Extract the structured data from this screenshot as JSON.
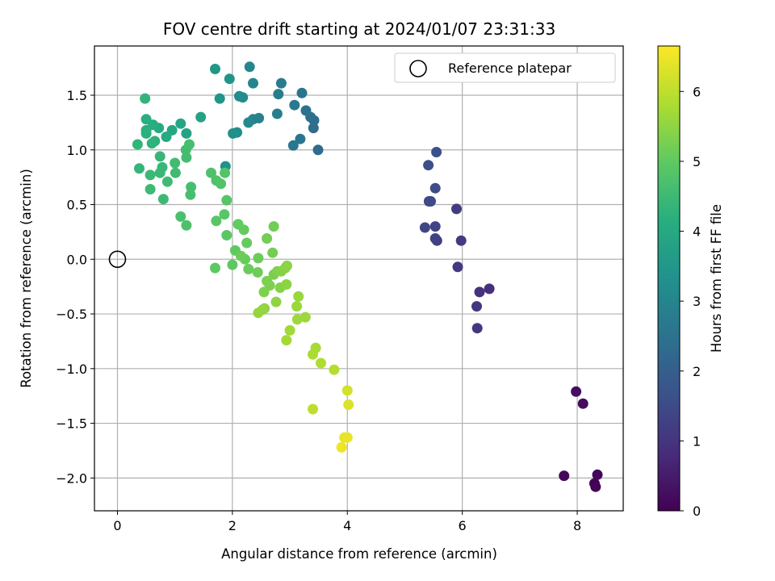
{
  "chart_data": {
    "type": "scatter",
    "title": "FOV centre drift starting at 2024/01/07 23:31:33",
    "xlabel": "Angular distance from reference (arcmin)",
    "ylabel": "Rotation from reference (arcmin)",
    "xlim": [
      -0.4,
      8.8
    ],
    "ylim": [
      -2.3,
      1.95
    ],
    "x_ticks": [
      0,
      2,
      4,
      6,
      8
    ],
    "x_tick_labels": [
      "0",
      "2",
      "4",
      "6",
      "8"
    ],
    "y_ticks": [
      -2.0,
      -1.5,
      -1.0,
      -0.5,
      0.0,
      0.5,
      1.0,
      1.5
    ],
    "y_tick_labels": [
      "−2.0",
      "−1.5",
      "−1.0",
      "−0.5",
      "0.0",
      "0.5",
      "1.0",
      "1.5"
    ],
    "grid": true,
    "legend": {
      "position": "upper right",
      "entries": [
        "Reference platepar"
      ]
    },
    "reference_point": {
      "x": 0.0,
      "y": 0.0,
      "marker": "open-circle"
    },
    "colorbar": {
      "label": "Hours from first FF file",
      "colormap": "viridis",
      "range": [
        0,
        6.65
      ],
      "ticks": [
        0,
        1,
        2,
        3,
        4,
        5,
        6
      ],
      "tick_labels": [
        "0",
        "1",
        "2",
        "3",
        "4",
        "5",
        "6"
      ]
    },
    "points": [
      [
        8.3,
        -2.05,
        0.0
      ],
      [
        8.32,
        -2.08,
        0.06
      ],
      [
        8.35,
        -1.97,
        0.1
      ],
      [
        7.77,
        -1.98,
        0.15
      ],
      [
        8.1,
        -1.32,
        0.2
      ],
      [
        7.98,
        -1.21,
        0.25
      ],
      [
        6.47,
        -0.27,
        0.9
      ],
      [
        6.3,
        -0.3,
        0.95
      ],
      [
        6.25,
        -0.43,
        1.0
      ],
      [
        6.26,
        -0.63,
        1.05
      ],
      [
        5.92,
        -0.07,
        1.1
      ],
      [
        5.98,
        0.17,
        1.15
      ],
      [
        5.9,
        0.46,
        1.2
      ],
      [
        5.56,
        0.17,
        1.25
      ],
      [
        5.53,
        0.19,
        1.3
      ],
      [
        5.53,
        0.3,
        1.35
      ],
      [
        5.35,
        0.29,
        1.4
      ],
      [
        5.42,
        0.53,
        1.45
      ],
      [
        5.45,
        0.53,
        1.5
      ],
      [
        5.53,
        0.65,
        1.55
      ],
      [
        5.41,
        0.86,
        1.6
      ],
      [
        5.55,
        0.98,
        1.65
      ],
      [
        3.49,
        1.0,
        2.3
      ],
      [
        3.41,
        1.2,
        2.35
      ],
      [
        3.42,
        1.27,
        2.4
      ],
      [
        3.36,
        1.3,
        2.45
      ],
      [
        3.28,
        1.36,
        2.5
      ],
      [
        3.21,
        1.52,
        2.55
      ],
      [
        3.18,
        1.1,
        2.6
      ],
      [
        3.06,
        1.04,
        2.65
      ],
      [
        3.08,
        1.41,
        2.7
      ],
      [
        2.85,
        1.61,
        2.75
      ],
      [
        2.8,
        1.51,
        2.8
      ],
      [
        2.78,
        1.33,
        2.85
      ],
      [
        2.46,
        1.29,
        2.9
      ],
      [
        2.36,
        1.28,
        2.95
      ],
      [
        2.36,
        1.61,
        3.0
      ],
      [
        2.3,
        1.76,
        3.05
      ],
      [
        2.28,
        1.25,
        3.1
      ],
      [
        2.18,
        1.48,
        3.15
      ],
      [
        2.12,
        1.49,
        3.2
      ],
      [
        2.08,
        1.16,
        3.25
      ],
      [
        2.01,
        1.15,
        3.3
      ],
      [
        1.88,
        0.85,
        3.35
      ],
      [
        1.95,
        1.65,
        3.4
      ],
      [
        1.78,
        1.47,
        3.45
      ],
      [
        1.7,
        1.74,
        3.5
      ],
      [
        1.45,
        1.3,
        3.8
      ],
      [
        1.2,
        1.15,
        3.85
      ],
      [
        1.1,
        1.24,
        3.9
      ],
      [
        0.95,
        1.18,
        3.95
      ],
      [
        0.85,
        1.12,
        4.0
      ],
      [
        0.72,
        1.2,
        4.05
      ],
      [
        0.62,
        1.23,
        4.1
      ],
      [
        0.5,
        1.28,
        4.15
      ],
      [
        0.5,
        1.18,
        4.2
      ],
      [
        0.5,
        1.15,
        4.22
      ],
      [
        0.65,
        1.08,
        4.25
      ],
      [
        0.6,
        1.06,
        4.28
      ],
      [
        0.48,
        1.47,
        4.3
      ],
      [
        0.35,
        1.05,
        4.33
      ],
      [
        0.38,
        0.83,
        4.36
      ],
      [
        0.74,
        0.94,
        4.4
      ],
      [
        0.78,
        0.84,
        4.42
      ],
      [
        0.74,
        0.79,
        4.44
      ],
      [
        0.57,
        0.77,
        4.46
      ],
      [
        0.57,
        0.64,
        4.48
      ],
      [
        0.8,
        0.55,
        4.5
      ],
      [
        0.87,
        0.71,
        4.52
      ],
      [
        1.01,
        0.79,
        4.54
      ],
      [
        1.0,
        0.88,
        4.56
      ],
      [
        1.2,
        0.93,
        4.58
      ],
      [
        1.19,
        1.0,
        4.6
      ],
      [
        1.25,
        1.05,
        4.62
      ],
      [
        1.28,
        0.66,
        4.64
      ],
      [
        1.27,
        0.59,
        4.66
      ],
      [
        1.1,
        0.39,
        4.7
      ],
      [
        1.2,
        0.31,
        4.72
      ],
      [
        1.63,
        0.79,
        4.75
      ],
      [
        1.72,
        0.72,
        4.78
      ],
      [
        1.8,
        0.69,
        4.8
      ],
      [
        1.87,
        0.79,
        4.82
      ],
      [
        1.9,
        0.54,
        4.85
      ],
      [
        1.86,
        0.41,
        4.88
      ],
      [
        1.72,
        0.35,
        4.9
      ],
      [
        1.9,
        0.22,
        4.92
      ],
      [
        1.7,
        -0.08,
        4.95
      ],
      [
        2.0,
        -0.05,
        4.97
      ],
      [
        2.05,
        0.08,
        5.0
      ],
      [
        2.1,
        0.32,
        5.02
      ],
      [
        2.2,
        0.27,
        5.04
      ],
      [
        2.25,
        0.15,
        5.06
      ],
      [
        2.22,
        0.0,
        5.08
      ],
      [
        2.28,
        -0.09,
        5.1
      ],
      [
        2.15,
        0.03,
        5.12
      ],
      [
        2.45,
        0.01,
        5.14
      ],
      [
        2.44,
        -0.12,
        5.16
      ],
      [
        2.72,
        0.3,
        5.18
      ],
      [
        2.6,
        0.19,
        5.2
      ],
      [
        2.7,
        0.06,
        5.22
      ],
      [
        2.72,
        -0.14,
        5.25
      ],
      [
        2.6,
        -0.2,
        5.28
      ],
      [
        2.65,
        -0.24,
        5.3
      ],
      [
        2.55,
        -0.3,
        5.32
      ],
      [
        2.78,
        -0.11,
        5.35
      ],
      [
        2.83,
        -0.26,
        5.38
      ],
      [
        2.85,
        -0.11,
        5.4
      ],
      [
        2.92,
        -0.08,
        5.42
      ],
      [
        2.95,
        -0.06,
        5.45
      ],
      [
        2.94,
        -0.23,
        5.48
      ],
      [
        2.76,
        -0.39,
        5.5
      ],
      [
        2.56,
        -0.45,
        5.52
      ],
      [
        2.53,
        -0.46,
        5.54
      ],
      [
        2.45,
        -0.49,
        5.56
      ],
      [
        3.15,
        -0.34,
        5.6
      ],
      [
        3.12,
        -0.43,
        5.62
      ],
      [
        3.27,
        -0.53,
        5.64
      ],
      [
        3.13,
        -0.55,
        5.66
      ],
      [
        3.0,
        -0.65,
        5.68
      ],
      [
        2.94,
        -0.74,
        5.7
      ],
      [
        3.45,
        -0.81,
        5.75
      ],
      [
        3.4,
        -0.87,
        5.8
      ],
      [
        3.54,
        -0.95,
        5.85
      ],
      [
        3.77,
        -1.01,
        5.9
      ],
      [
        3.4,
        -1.37,
        6.0
      ],
      [
        4.0,
        -1.2,
        6.2
      ],
      [
        4.02,
        -1.33,
        6.3
      ],
      [
        3.95,
        -1.63,
        6.4
      ],
      [
        4.0,
        -1.63,
        6.45
      ],
      [
        3.9,
        -1.72,
        6.5
      ]
    ]
  }
}
